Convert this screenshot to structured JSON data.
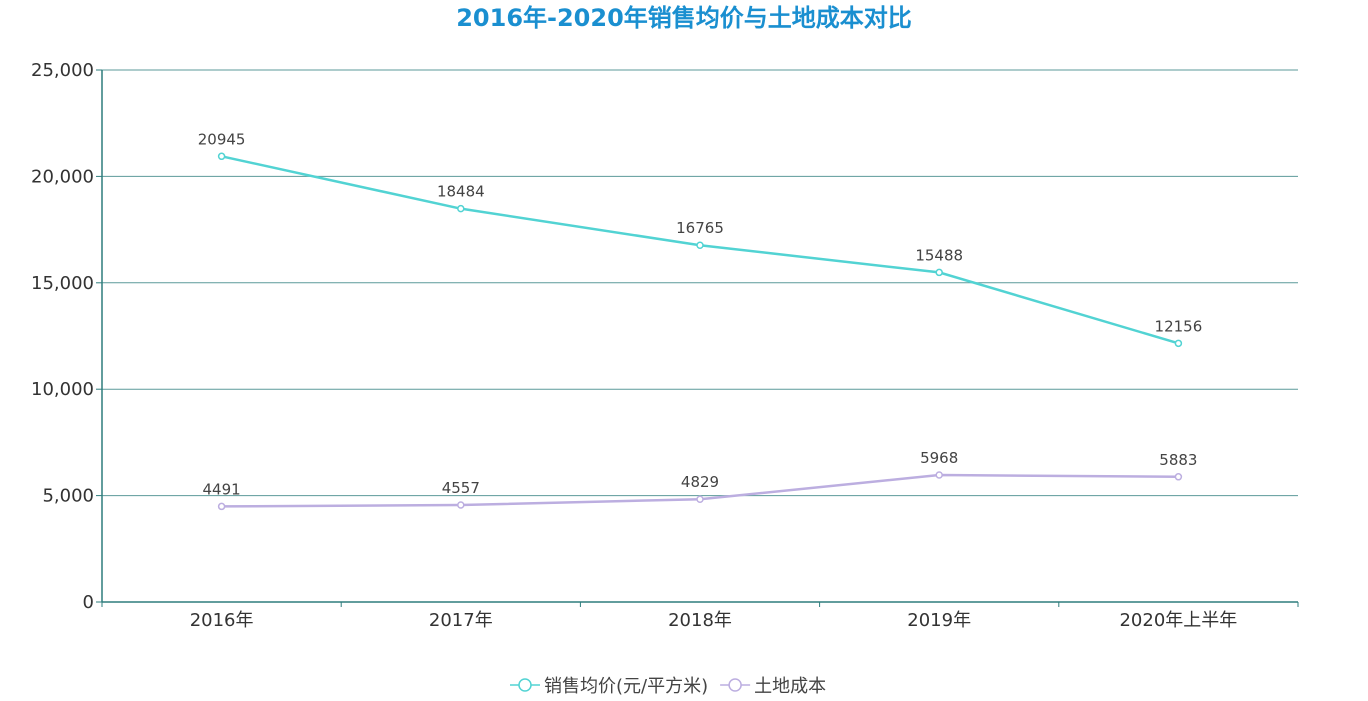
{
  "chart_data": {
    "type": "line",
    "title": "2016年-2020年销售均价与土地成本对比",
    "categories": [
      "2016年",
      "2017年",
      "2018年",
      "2019年",
      "2020年上半年"
    ],
    "series": [
      {
        "name": "销售均价(元/平方米)",
        "values": [
          20945,
          18484,
          16765,
          15488,
          12156
        ],
        "color": "#52d3d3"
      },
      {
        "name": "土地成本",
        "values": [
          4491,
          4557,
          4829,
          5968,
          5883
        ],
        "color": "#bcaee0"
      }
    ],
    "ylim": [
      0,
      25000
    ],
    "yticks": [
      0,
      5000,
      10000,
      15000,
      20000,
      25000
    ],
    "ytick_labels": [
      "0",
      "5,000",
      "10,000",
      "15,000",
      "20,000",
      "25,000"
    ],
    "grid": true,
    "legend": "bottom-center",
    "axis_color": "#2e7d7d",
    "grid_color": "#5b9a9a"
  }
}
